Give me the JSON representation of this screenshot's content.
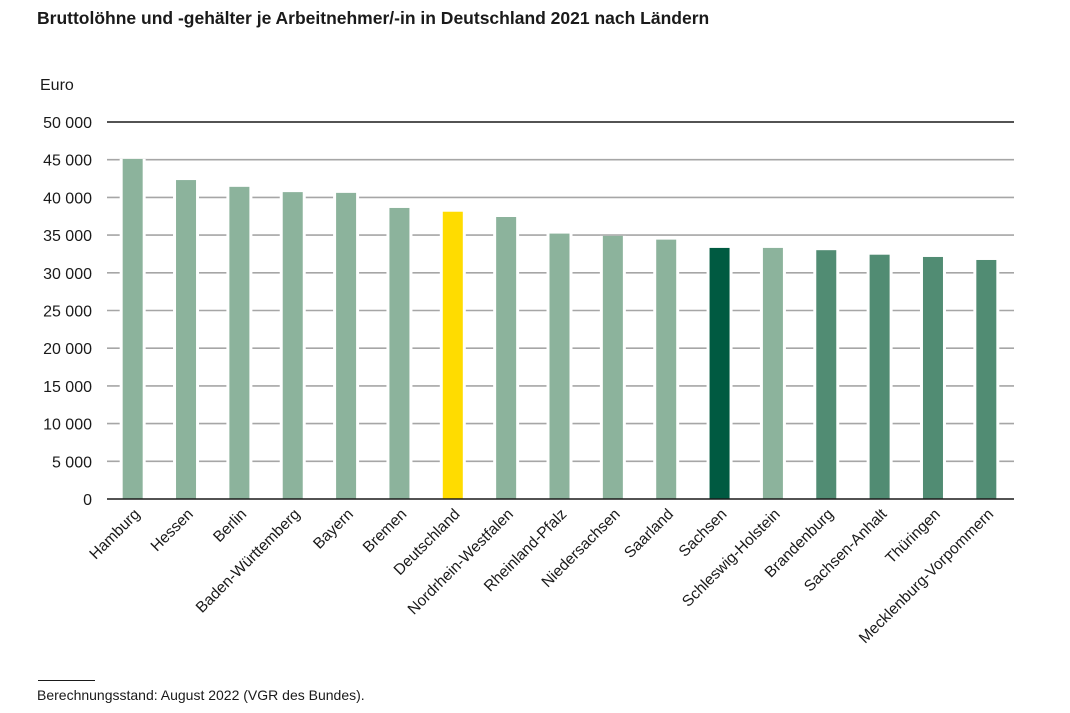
{
  "chart_data": {
    "type": "bar",
    "title": "Bruttolöhne und -gehälter je Arbeitnehmer/-in in Deutschland 2021 nach Ländern",
    "ylabel": "Euro",
    "xlabel": "",
    "ylim": [
      0,
      50000
    ],
    "yticks": [
      0,
      5000,
      10000,
      15000,
      20000,
      25000,
      30000,
      35000,
      40000,
      45000,
      50000
    ],
    "ytick_labels": [
      "0",
      "5 000",
      "10 000",
      "15 000",
      "20 000",
      "25 000",
      "30 000",
      "35 000",
      "40 000",
      "45 000",
      "50 000"
    ],
    "grid": true,
    "categories": [
      "Hamburg",
      "Hessen",
      "Berlin",
      "Baden-Württemberg",
      "Bayern",
      "Bremen",
      "Deutschland",
      "Nordrhein-Westfalen",
      "Rheinland-Pfalz",
      "Niedersachsen",
      "Saarland",
      "Sachsen",
      "Schleswig-Holstein",
      "Brandenburg",
      "Sachsen-Anhalt",
      "Thüringen",
      "Mecklenburg-Vorpommern"
    ],
    "values": [
      45100,
      42300,
      41400,
      40700,
      40600,
      38600,
      38100,
      37400,
      35200,
      34900,
      34400,
      33300,
      33300,
      33000,
      32400,
      32100,
      31700
    ],
    "bar_colors": [
      "#8cb39c",
      "#8cb39c",
      "#8cb39c",
      "#8cb39c",
      "#8cb39c",
      "#8cb39c",
      "#ffdc00",
      "#8cb39c",
      "#8cb39c",
      "#8cb39c",
      "#8cb39c",
      "#005a41",
      "#8cb39c",
      "#518c73",
      "#518c73",
      "#518c73",
      "#518c73"
    ],
    "legend": "none"
  },
  "colors": {
    "gridline": "#a6a6a6",
    "axis": "#1a1a1a"
  },
  "footnote": "Berechnungsstand: August 2022 (VGR des Bundes)."
}
